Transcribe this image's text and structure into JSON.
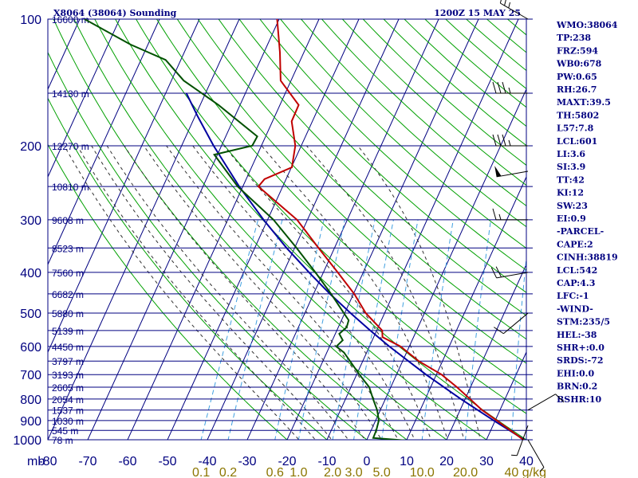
{
  "header": {
    "title": "X8064 (38064) Sounding",
    "time": "1200Z 15 MAY 25",
    "pressure_unit": "mb",
    "mixing_ratio_unit": "g/kg"
  },
  "indices": [
    "WMO:38064",
    "TP:238",
    "FRZ:594",
    "WB0:678",
    "PW:0.65",
    "RH:26.7",
    "MAXT:39.5",
    "TH:5802",
    "L57:7.8",
    "LCL:601",
    "LI:3.6",
    "SI:3.9",
    "TT:42",
    "KI:12",
    "SW:23",
    "EI:0.9",
    "-PARCEL-",
    "CAPE:2",
    "CINH:38819",
    "LCL:542",
    "CAP:4.3",
    "LFC:-1",
    "-WIND-",
    "STM:235/5",
    "HEL:-38",
    "SHR+:0.0",
    "SRDS:-72",
    "EHI:0.0",
    "BRN:0.2",
    "BSHR:10"
  ],
  "colors": {
    "isobar": "#000080",
    "isotherm": "#000080",
    "dry_adiabat": "#00a000",
    "moist_adiabat": "#303030",
    "mixing_ratio": "#40a0e0",
    "temperature": "#c00000",
    "dewpoint": "#005000",
    "parcel": "#0000a0",
    "wind": "#000000",
    "mixing_ratio_label": "#8b7500"
  },
  "chart_data": {
    "type": "skew-t",
    "title": "X8064 (38064) Sounding",
    "pressure_levels": [
      100,
      200,
      300,
      400,
      500,
      600,
      700,
      800,
      900,
      1000
    ],
    "temperature_ticks": [
      -80,
      -70,
      -60,
      -50,
      -40,
      -30,
      -20,
      -10,
      0,
      10,
      20,
      30,
      40
    ],
    "mixing_ratio_ticks": [
      "0.1",
      "0.2",
      "0.6",
      "1.0",
      "2.0",
      "3.0",
      "5.0",
      "10.0",
      "20.0",
      "40"
    ],
    "height_labels": [
      {
        "p": 100,
        "label": "16600 m"
      },
      {
        "p": 150,
        "label": "14130 m"
      },
      {
        "p": 200,
        "label": "12270 m"
      },
      {
        "p": 250,
        "label": "10810 m"
      },
      {
        "p": 300,
        "label": "9608 m"
      },
      {
        "p": 350,
        "label": "8523 m"
      },
      {
        "p": 400,
        "label": "7560 m"
      },
      {
        "p": 450,
        "label": "6682 m"
      },
      {
        "p": 500,
        "label": "5880 m"
      },
      {
        "p": 550,
        "label": "5139 m"
      },
      {
        "p": 600,
        "label": "4450 m"
      },
      {
        "p": 650,
        "label": "3797 m"
      },
      {
        "p": 700,
        "label": "3193 m"
      },
      {
        "p": 750,
        "label": "2605 m"
      },
      {
        "p": 800,
        "label": "2054 m"
      },
      {
        "p": 850,
        "label": "1537 m"
      },
      {
        "p": 900,
        "label": "1030 m"
      },
      {
        "p": 950,
        "label": "545 m"
      },
      {
        "p": 1000,
        "label": "78 m"
      }
    ],
    "temperature": [
      [
        1003,
        39.5
      ],
      [
        900,
        30.4
      ],
      [
        850,
        25.5
      ],
      [
        800,
        21.2
      ],
      [
        750,
        16.6
      ],
      [
        700,
        11.3
      ],
      [
        650,
        4.0
      ],
      [
        600,
        -2.2
      ],
      [
        570,
        -7.8
      ],
      [
        550,
        -8.6
      ],
      [
        500,
        -14.7
      ],
      [
        450,
        -19.8
      ],
      [
        400,
        -26.4
      ],
      [
        350,
        -34.0
      ],
      [
        300,
        -42.6
      ],
      [
        250,
        -56.1
      ],
      [
        240,
        -55.4
      ],
      [
        225,
        -49.9
      ],
      [
        200,
        -51.5
      ],
      [
        175,
        -55.2
      ],
      [
        160,
        -55.3
      ],
      [
        140,
        -62.6
      ],
      [
        120,
        -66.0
      ],
      [
        100,
        -70.5
      ]
    ],
    "dewpoint": [
      [
        1003,
        9.5
      ],
      [
        990,
        1.4
      ],
      [
        950,
        1.3
      ],
      [
        900,
        0.8
      ],
      [
        850,
        -0.8
      ],
      [
        800,
        -3.1
      ],
      [
        750,
        -5.4
      ],
      [
        700,
        -9.3
      ],
      [
        660,
        -12.4
      ],
      [
        620,
        -15.7
      ],
      [
        600,
        -18.3
      ],
      [
        580,
        -17.4
      ],
      [
        560,
        -19.0
      ],
      [
        540,
        -17.9
      ],
      [
        520,
        -18.2
      ],
      [
        500,
        -20.2
      ],
      [
        450,
        -25.6
      ],
      [
        400,
        -32.0
      ],
      [
        350,
        -39.5
      ],
      [
        300,
        -48.5
      ],
      [
        250,
        -61.3
      ],
      [
        210,
        -70.8
      ],
      [
        200,
        -62.3
      ],
      [
        190,
        -62.1
      ],
      [
        160,
        -75.4
      ],
      [
        140,
        -86.9
      ],
      [
        125,
        -93.8
      ],
      [
        115,
        -104.3
      ],
      [
        100,
        -118.8
      ]
    ],
    "parcel": [
      [
        1000,
        39.5
      ],
      [
        900,
        29.6
      ],
      [
        800,
        18.9
      ],
      [
        700,
        7.4
      ],
      [
        600,
        -5.0
      ],
      [
        550,
        -11.6
      ],
      [
        500,
        -18.5
      ],
      [
        450,
        -25.9
      ],
      [
        400,
        -33.6
      ],
      [
        350,
        -42.0
      ],
      [
        300,
        -51.0
      ],
      [
        250,
        -60.9
      ],
      [
        200,
        -72.0
      ],
      [
        170,
        -79.4
      ],
      [
        150,
        -84.8
      ]
    ],
    "wind_barbs": [
      {
        "p": 100,
        "dir": 300,
        "kt": 25
      },
      {
        "p": 150,
        "dir": 270,
        "kt": 35
      },
      {
        "p": 200,
        "dir": 270,
        "kt": 35
      },
      {
        "p": 230,
        "dir": 260,
        "kt": 50
      },
      {
        "p": 300,
        "dir": 270,
        "kt": 15
      },
      {
        "p": 400,
        "dir": 260,
        "kt": 20
      },
      {
        "p": 500,
        "dir": 230,
        "kt": 10
      },
      {
        "p": 850,
        "dir": 60,
        "kt": 10
      },
      {
        "p": 925,
        "dir": 200,
        "kt": 5
      },
      {
        "p": 1000,
        "dir": 150,
        "kt": 5
      }
    ],
    "xlim": [
      -80,
      40
    ],
    "ylim": [
      100,
      1000
    ],
    "skew_deg_per_decade": 48,
    "dry_adiabats_theta_c": [
      -20,
      -10,
      0,
      10,
      20,
      30,
      40,
      50,
      60,
      70,
      80,
      90,
      100,
      110,
      120,
      130,
      140,
      150,
      160,
      170,
      180,
      190,
      200,
      210,
      220,
      230
    ],
    "moist_adiabats_theta_w": [
      -14,
      -10,
      -6,
      -2,
      2,
      6,
      10,
      14,
      18,
      22,
      26,
      30
    ],
    "grid": true
  }
}
